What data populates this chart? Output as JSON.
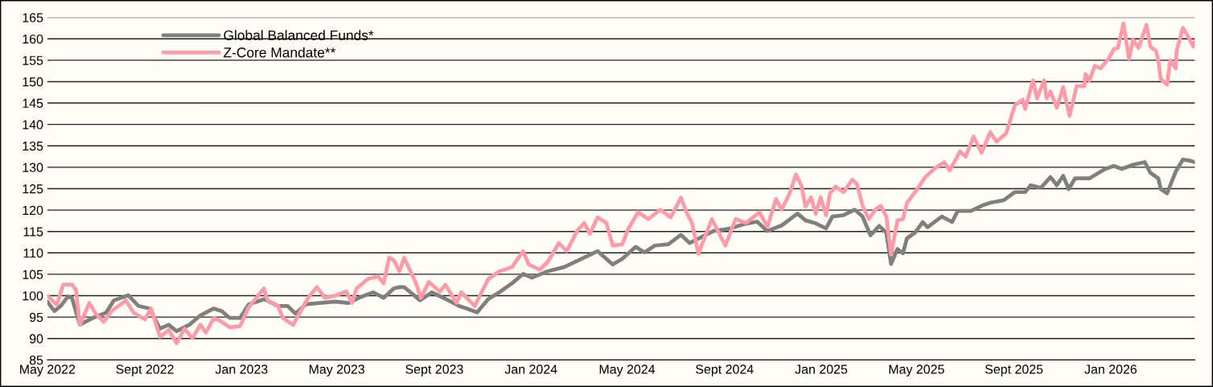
{
  "chart_data": {
    "type": "line",
    "xlim": [
      "2022-05-01",
      "2026-04-17"
    ],
    "xticks": [
      {
        "value": "2022-05-01",
        "label": "May 2022"
      },
      {
        "value": "2022-09-01",
        "label": "Sept 2022"
      },
      {
        "value": "2023-01-01",
        "label": "Jan 2023"
      },
      {
        "value": "2023-05-01",
        "label": "May 2023"
      },
      {
        "value": "2023-09-01",
        "label": "Sept 2023"
      },
      {
        "value": "2024-01-01",
        "label": "Jan 2024"
      },
      {
        "value": "2024-05-01",
        "label": "May 2024"
      },
      {
        "value": "2024-09-01",
        "label": "Sept 2024"
      },
      {
        "value": "2025-01-01",
        "label": "Jan 2025"
      },
      {
        "value": "2025-05-01",
        "label": "May 2025"
      },
      {
        "value": "2025-09-01",
        "label": "Sept 2025"
      },
      {
        "value": "2026-01-01",
        "label": "Jan 2026"
      }
    ],
    "ylim": [
      85,
      165
    ],
    "yticks": [
      85,
      90,
      95,
      100,
      105,
      110,
      115,
      120,
      125,
      130,
      135,
      140,
      145,
      150,
      155,
      160,
      165
    ],
    "grid": "y",
    "legend": "top left",
    "marker": "none",
    "line_style": "solid",
    "series": [
      {
        "name": "Global Balanced Funds*",
        "color": "#7f7f7d",
        "x": [
          "2022-05-01",
          "2022-05-10",
          "2022-05-18",
          "2022-05-27",
          "2022-06-01",
          "2022-06-11",
          "2022-06-21",
          "2022-07-01",
          "2022-07-14",
          "2022-07-24",
          "2022-08-11",
          "2022-08-24",
          "2022-09-07",
          "2022-09-20",
          "2022-10-01",
          "2022-10-11",
          "2022-10-27",
          "2022-11-10",
          "2022-11-27",
          "2022-12-07",
          "2022-12-17",
          "2022-12-30",
          "2023-01-10",
          "2023-01-30",
          "2023-02-16",
          "2023-02-28",
          "2023-03-10",
          "2023-03-23",
          "2023-04-09",
          "2023-04-29",
          "2023-05-16",
          "2023-05-29",
          "2023-06-16",
          "2023-06-29",
          "2023-07-12",
          "2023-07-19",
          "2023-07-25",
          "2023-08-02",
          "2023-08-14",
          "2023-08-29",
          "2023-09-19",
          "2023-10-02",
          "2023-10-12",
          "2023-10-25",
          "2023-11-08",
          "2023-11-22",
          "2023-12-08",
          "2023-12-22",
          "2024-01-02",
          "2024-01-22",
          "2024-02-12",
          "2024-03-08",
          "2024-03-25",
          "2024-04-13",
          "2024-04-25",
          "2024-05-12",
          "2024-05-23",
          "2024-06-05",
          "2024-06-22",
          "2024-07-08",
          "2024-07-19",
          "2024-08-05",
          "2024-08-18",
          "2024-09-08",
          "2024-09-25",
          "2024-10-12",
          "2024-10-25",
          "2024-11-12",
          "2024-12-02",
          "2024-12-12",
          "2024-12-25",
          "2025-01-07",
          "2025-01-15",
          "2025-01-29",
          "2025-02-12",
          "2025-02-22",
          "2025-03-04",
          "2025-03-15",
          "2025-03-24",
          "2025-03-30",
          "2025-04-07",
          "2025-04-14",
          "2025-04-19",
          "2025-04-29",
          "2025-05-09",
          "2025-05-15",
          "2025-06-02",
          "2025-06-15",
          "2025-06-22",
          "2025-07-09",
          "2025-07-22",
          "2025-08-02",
          "2025-08-19",
          "2025-09-02",
          "2025-09-15",
          "2025-09-22",
          "2025-10-05",
          "2025-10-17",
          "2025-10-25",
          "2025-11-02",
          "2025-11-09",
          "2025-11-17",
          "2025-12-05",
          "2025-12-25",
          "2026-01-05",
          "2026-01-15",
          "2026-01-29",
          "2026-02-13",
          "2026-02-20",
          "2026-03-02",
          "2026-03-05",
          "2026-03-13",
          "2026-03-24",
          "2026-04-02",
          "2026-04-12",
          "2026-04-17"
        ],
        "values": [
          98.6,
          96.4,
          97.6,
          99.8,
          99.5,
          93.2,
          94.2,
          95.1,
          96.0,
          98.9,
          100.1,
          97.6,
          97.0,
          92.3,
          93.2,
          91.7,
          93.2,
          95.4,
          97.0,
          96.4,
          94.8,
          94.8,
          98.0,
          99.2,
          97.6,
          97.6,
          95.8,
          98.0,
          98.3,
          98.6,
          98.3,
          99.5,
          100.8,
          99.5,
          101.7,
          102.0,
          102.0,
          100.8,
          98.9,
          100.8,
          98.9,
          97.6,
          97.0,
          96.1,
          99.2,
          100.8,
          102.9,
          105.1,
          104.2,
          105.7,
          106.7,
          108.9,
          110.4,
          107.3,
          108.6,
          111.4,
          110.1,
          111.7,
          112.0,
          114.2,
          112.3,
          113.9,
          115.1,
          115.7,
          116.7,
          117.3,
          115.1,
          116.4,
          119.2,
          117.6,
          116.9,
          115.7,
          118.5,
          118.8,
          120.1,
          118.5,
          114.1,
          116.3,
          114.7,
          107.4,
          110.9,
          109.9,
          113.4,
          114.7,
          117.2,
          116.0,
          118.5,
          117.2,
          119.8,
          119.8,
          121.0,
          121.7,
          122.3,
          124.2,
          124.2,
          125.8,
          125.2,
          127.7,
          125.8,
          128.0,
          124.9,
          127.4,
          127.4,
          129.6,
          130.3,
          129.6,
          130.6,
          131.2,
          128.7,
          127.4,
          124.9,
          123.9,
          129.0,
          131.8,
          131.5,
          131.2
        ]
      },
      {
        "name": "Z-Core Mandate**",
        "color": "#ff9aa8",
        "x": [
          "2022-05-01",
          "2022-05-13",
          "2022-05-21",
          "2022-06-01",
          "2022-06-06",
          "2022-06-11",
          "2022-06-23",
          "2022-07-01",
          "2022-07-11",
          "2022-07-21",
          "2022-08-08",
          "2022-08-18",
          "2022-09-01",
          "2022-09-09",
          "2022-09-20",
          "2022-10-01",
          "2022-10-11",
          "2022-10-21",
          "2022-10-31",
          "2022-11-10",
          "2022-11-17",
          "2022-11-27",
          "2022-12-07",
          "2022-12-17",
          "2022-12-30",
          "2023-01-10",
          "2023-01-29",
          "2023-02-03",
          "2023-02-16",
          "2023-02-22",
          "2023-03-07",
          "2023-03-20",
          "2023-03-27",
          "2023-04-06",
          "2023-04-16",
          "2023-04-29",
          "2023-05-13",
          "2023-05-20",
          "2023-05-26",
          "2023-06-09",
          "2023-06-22",
          "2023-06-29",
          "2023-07-06",
          "2023-07-12",
          "2023-07-19",
          "2023-07-25",
          "2023-08-09",
          "2023-08-15",
          "2023-08-25",
          "2023-09-08",
          "2023-09-15",
          "2023-09-29",
          "2023-10-05",
          "2023-10-22",
          "2023-11-08",
          "2023-11-22",
          "2023-12-08",
          "2023-12-22",
          "2023-12-29",
          "2024-01-12",
          "2024-01-22",
          "2024-02-05",
          "2024-02-15",
          "2024-02-28",
          "2024-03-08",
          "2024-03-15",
          "2024-03-25",
          "2024-04-05",
          "2024-04-13",
          "2024-04-25",
          "2024-05-02",
          "2024-05-15",
          "2024-05-28",
          "2024-06-12",
          "2024-06-25",
          "2024-07-08",
          "2024-07-15",
          "2024-07-22",
          "2024-07-30",
          "2024-08-16",
          "2024-09-02",
          "2024-09-15",
          "2024-09-28",
          "2024-10-15",
          "2024-10-25",
          "2024-11-05",
          "2024-11-12",
          "2024-11-22",
          "2024-11-30",
          "2024-12-07",
          "2024-12-12",
          "2024-12-19",
          "2024-12-25",
          "2024-12-31",
          "2025-01-07",
          "2025-01-12",
          "2025-01-19",
          "2025-01-29",
          "2025-02-09",
          "2025-02-15",
          "2025-02-22",
          "2025-03-02",
          "2025-03-10",
          "2025-03-17",
          "2025-03-24",
          "2025-03-30",
          "2025-04-07",
          "2025-04-14",
          "2025-04-19",
          "2025-05-02",
          "2025-05-12",
          "2025-05-25",
          "2025-06-05",
          "2025-06-12",
          "2025-06-25",
          "2025-07-02",
          "2025-07-12",
          "2025-07-22",
          "2025-08-02",
          "2025-08-10",
          "2025-08-22",
          "2025-09-02",
          "2025-09-12",
          "2025-09-15",
          "2025-09-25",
          "2025-09-30",
          "2025-10-09",
          "2025-10-12",
          "2025-10-17",
          "2025-10-25",
          "2025-11-02",
          "2025-11-10",
          "2025-11-19",
          "2025-11-29",
          "2025-11-30",
          "2025-12-05",
          "2025-12-12",
          "2025-12-19",
          "2025-12-29",
          "2026-01-05",
          "2026-01-10",
          "2026-01-17",
          "2026-01-24",
          "2026-01-29",
          "2026-02-05",
          "2026-02-15",
          "2026-02-20",
          "2026-02-27",
          "2026-03-02",
          "2026-03-05",
          "2026-03-13",
          "2026-03-17",
          "2026-03-24",
          "2026-03-25",
          "2026-04-02",
          "2026-04-09",
          "2026-04-15",
          "2026-04-17"
        ],
        "values": [
          100.0,
          97.9,
          102.6,
          102.6,
          101.4,
          93.2,
          98.3,
          95.8,
          93.9,
          96.4,
          98.9,
          96.0,
          94.5,
          97.0,
          90.4,
          92.0,
          88.9,
          92.3,
          90.1,
          93.2,
          91.4,
          94.8,
          93.9,
          92.6,
          92.9,
          97.3,
          101.7,
          98.9,
          97.6,
          94.8,
          93.2,
          97.6,
          99.8,
          102.0,
          99.5,
          100.0,
          101.0,
          98.3,
          101.7,
          103.9,
          104.5,
          102.9,
          108.9,
          108.3,
          105.7,
          108.9,
          102.9,
          99.5,
          103.2,
          101.0,
          102.6,
          98.3,
          100.8,
          97.6,
          103.9,
          105.7,
          106.7,
          110.4,
          107.3,
          106.1,
          107.9,
          112.3,
          110.4,
          115.1,
          117.0,
          114.5,
          118.3,
          117.0,
          111.7,
          112.0,
          115.4,
          119.5,
          117.9,
          120.1,
          118.3,
          122.9,
          119.5,
          117.0,
          109.8,
          117.9,
          111.7,
          117.9,
          117.0,
          119.5,
          116.1,
          122.6,
          120.1,
          123.9,
          128.3,
          125.7,
          120.8,
          123.0,
          119.1,
          123.0,
          118.8,
          123.9,
          125.5,
          124.2,
          127.1,
          126.1,
          121.0,
          117.9,
          120.1,
          121.0,
          118.5,
          109.6,
          117.6,
          117.9,
          121.7,
          124.9,
          127.7,
          129.9,
          131.2,
          129.3,
          133.7,
          132.5,
          137.2,
          133.4,
          138.2,
          136.0,
          137.9,
          144.5,
          145.8,
          143.6,
          150.3,
          146.1,
          150.3,
          146.1,
          147.7,
          143.9,
          148.7,
          142.0,
          149.0,
          149.0,
          151.8,
          150.3,
          153.7,
          153.1,
          155.3,
          157.6,
          157.9,
          163.6,
          155.3,
          159.8,
          157.9,
          163.3,
          158.2,
          157.2,
          155.0,
          150.6,
          149.3,
          155.0,
          153.1,
          157.2,
          162.6,
          160.4,
          158.2,
          159.5
        ]
      }
    ]
  }
}
